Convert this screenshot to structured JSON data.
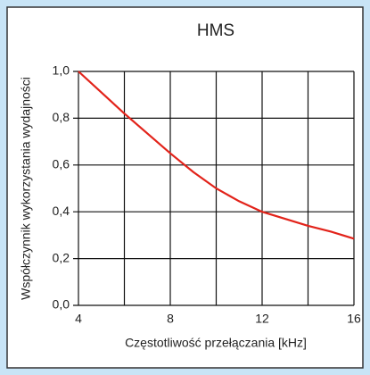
{
  "chart_data": {
    "type": "line",
    "title": "HMS",
    "xlabel": "Częstotliwość przełączania [kHz]",
    "ylabel": "Współczynnik wykorzystania wydajności",
    "x": [
      4,
      5,
      6,
      7,
      8,
      9,
      10,
      11,
      12,
      13,
      14,
      15,
      16
    ],
    "series": [
      {
        "name": "HMS",
        "color": "#e2231a",
        "values": [
          1.0,
          0.91,
          0.82,
          0.735,
          0.65,
          0.57,
          0.5,
          0.445,
          0.4,
          0.37,
          0.34,
          0.315,
          0.285
        ]
      }
    ],
    "xlim": [
      4,
      16
    ],
    "xticks": [
      4,
      8,
      12,
      16
    ],
    "xminorticks": [
      6,
      10,
      14
    ],
    "ylim": [
      0,
      1
    ],
    "yticks": [
      {
        "value": 0,
        "label": "0,0"
      },
      {
        "value": 0.2,
        "label": "0,2"
      },
      {
        "value": 0.4,
        "label": "0,4"
      },
      {
        "value": 0.6,
        "label": "0,6"
      },
      {
        "value": 0.8,
        "label": "0,8"
      },
      {
        "value": 1,
        "label": "1,0"
      }
    ],
    "grid": true
  }
}
